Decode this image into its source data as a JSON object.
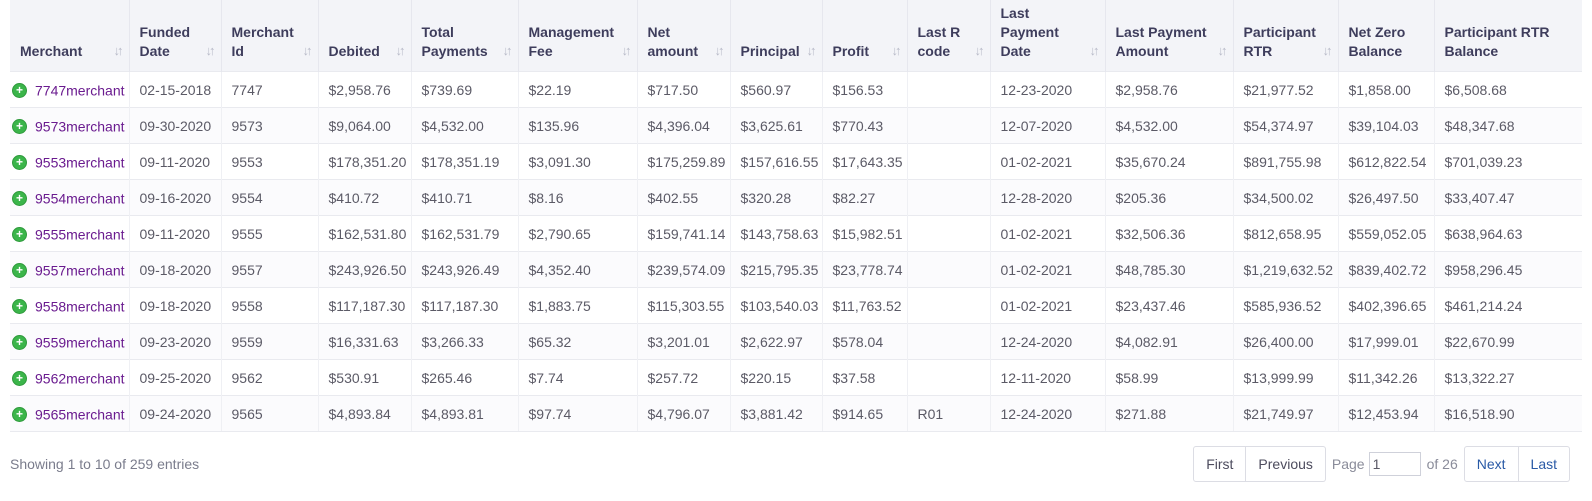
{
  "table": {
    "columns": [
      {
        "label": "Merchant",
        "sortable": true
      },
      {
        "label": "Funded Date",
        "sortable": true
      },
      {
        "label": "Merchant Id",
        "sortable": true
      },
      {
        "label": "Debited",
        "sortable": true
      },
      {
        "label": "Total Payments",
        "sortable": true
      },
      {
        "label": "Management Fee",
        "sortable": true
      },
      {
        "label": "Net amount",
        "sortable": true
      },
      {
        "label": "Principal",
        "sortable": true
      },
      {
        "label": "Profit",
        "sortable": true
      },
      {
        "label": "Last R code",
        "sortable": true
      },
      {
        "label": "Last Payment Date",
        "sortable": true
      },
      {
        "label": "Last Payment Amount",
        "sortable": true
      },
      {
        "label": "Participant RTR",
        "sortable": true
      },
      {
        "label": "Net Zero Balance",
        "sortable": false
      },
      {
        "label": "Participant RTR Balance",
        "sortable": false
      }
    ],
    "rows": [
      [
        "7747merchant",
        "02-15-2018",
        "7747",
        "$2,958.76",
        "$739.69",
        "$22.19",
        "$717.50",
        "$560.97",
        "$156.53",
        "",
        "12-23-2020",
        "$2,958.76",
        "$21,977.52",
        "$1,858.00",
        "$6,508.68"
      ],
      [
        "9573merchant",
        "09-30-2020",
        "9573",
        "$9,064.00",
        "$4,532.00",
        "$135.96",
        "$4,396.04",
        "$3,625.61",
        "$770.43",
        "",
        "12-07-2020",
        "$4,532.00",
        "$54,374.97",
        "$39,104.03",
        "$48,347.68"
      ],
      [
        "9553merchant",
        "09-11-2020",
        "9553",
        "$178,351.20",
        "$178,351.19",
        "$3,091.30",
        "$175,259.89",
        "$157,616.55",
        "$17,643.35",
        "",
        "01-02-2021",
        "$35,670.24",
        "$891,755.98",
        "$612,822.54",
        "$701,039.23"
      ],
      [
        "9554merchant",
        "09-16-2020",
        "9554",
        "$410.72",
        "$410.71",
        "$8.16",
        "$402.55",
        "$320.28",
        "$82.27",
        "",
        "12-28-2020",
        "$205.36",
        "$34,500.02",
        "$26,497.50",
        "$33,407.47"
      ],
      [
        "9555merchant",
        "09-11-2020",
        "9555",
        "$162,531.80",
        "$162,531.79",
        "$2,790.65",
        "$159,741.14",
        "$143,758.63",
        "$15,982.51",
        "",
        "01-02-2021",
        "$32,506.36",
        "$812,658.95",
        "$559,052.05",
        "$638,964.63"
      ],
      [
        "9557merchant",
        "09-18-2020",
        "9557",
        "$243,926.50",
        "$243,926.49",
        "$4,352.40",
        "$239,574.09",
        "$215,795.35",
        "$23,778.74",
        "",
        "01-02-2021",
        "$48,785.30",
        "$1,219,632.52",
        "$839,402.72",
        "$958,296.45"
      ],
      [
        "9558merchant",
        "09-18-2020",
        "9558",
        "$117,187.30",
        "$117,187.30",
        "$1,883.75",
        "$115,303.55",
        "$103,540.03",
        "$11,763.52",
        "",
        "01-02-2021",
        "$23,437.46",
        "$585,936.52",
        "$402,396.65",
        "$461,214.24"
      ],
      [
        "9559merchant",
        "09-23-2020",
        "9559",
        "$16,331.63",
        "$3,266.33",
        "$65.32",
        "$3,201.01",
        "$2,622.97",
        "$578.04",
        "",
        "12-24-2020",
        "$4,082.91",
        "$26,400.00",
        "$17,999.01",
        "$22,670.99"
      ],
      [
        "9562merchant",
        "09-25-2020",
        "9562",
        "$530.91",
        "$265.46",
        "$7.74",
        "$257.72",
        "$220.15",
        "$37.58",
        "",
        "12-11-2020",
        "$58.99",
        "$13,999.99",
        "$11,342.26",
        "$13,322.27"
      ],
      [
        "9565merchant",
        "09-24-2020",
        "9565",
        "$4,893.84",
        "$4,893.81",
        "$97.74",
        "$4,796.07",
        "$3,881.42",
        "$914.65",
        "R01",
        "12-24-2020",
        "$271.88",
        "$21,749.97",
        "$12,453.94",
        "$16,518.90"
      ]
    ]
  },
  "footer": {
    "info": "Showing 1 to 10 of 259 entries",
    "first": "First",
    "previous": "Previous",
    "page_label": "Page",
    "page_value": "1",
    "of_label": "of 26",
    "next": "Next",
    "last": "Last"
  },
  "colors": {
    "expand_icon": "#3bb54a",
    "merchant_link": "#6a1b8f",
    "header_bg": "#f3f4f8",
    "pager_link": "#2a5aa6"
  },
  "icons": {
    "expand": "plus-circle-icon",
    "sort": "sort-arrows-icon"
  }
}
